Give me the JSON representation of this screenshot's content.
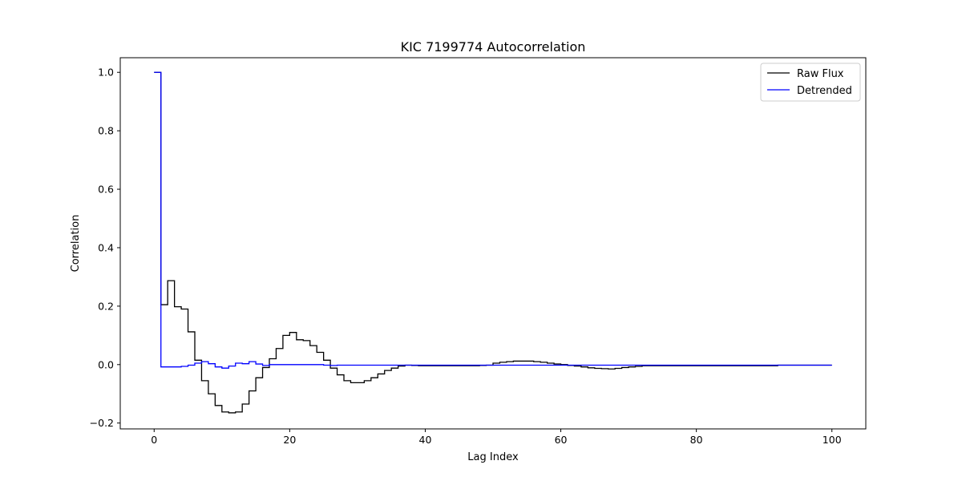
{
  "chart_data": {
    "type": "line",
    "title": "KIC 7199774 Autocorrelation",
    "xlabel": "Lag Index",
    "ylabel": "Correlation",
    "xlim": [
      -5,
      105
    ],
    "ylim": [
      -0.22,
      1.05
    ],
    "xticks": [
      0,
      20,
      40,
      60,
      80,
      100
    ],
    "yticks": [
      -0.2,
      0.0,
      0.2,
      0.4,
      0.6,
      0.8,
      1.0
    ],
    "xtick_labels": [
      "0",
      "20",
      "40",
      "60",
      "80",
      "100"
    ],
    "ytick_labels": [
      "−0.2",
      "0.0",
      "0.2",
      "0.4",
      "0.6",
      "0.8",
      "1.0"
    ],
    "grid": false,
    "legend": "upper-right",
    "drawstyle": "steps-post",
    "series": [
      {
        "name": "Raw Flux",
        "color": "#000000",
        "values": [
          1.0,
          0.205,
          0.287,
          0.198,
          0.19,
          0.112,
          0.015,
          -0.055,
          -0.1,
          -0.14,
          -0.162,
          -0.165,
          -0.162,
          -0.135,
          -0.09,
          -0.045,
          -0.01,
          0.02,
          0.055,
          0.1,
          0.11,
          0.085,
          0.082,
          0.065,
          0.042,
          0.015,
          -0.012,
          -0.035,
          -0.055,
          -0.062,
          -0.062,
          -0.055,
          -0.045,
          -0.032,
          -0.02,
          -0.012,
          -0.005,
          -0.002,
          -0.003,
          -0.004,
          -0.004,
          -0.004,
          -0.004,
          -0.004,
          -0.004,
          -0.004,
          -0.004,
          -0.004,
          -0.003,
          -0.002,
          0.005,
          0.008,
          0.01,
          0.012,
          0.012,
          0.012,
          0.01,
          0.008,
          0.005,
          0.002,
          0.0,
          -0.003,
          -0.005,
          -0.008,
          -0.011,
          -0.013,
          -0.014,
          -0.015,
          -0.013,
          -0.01,
          -0.008,
          -0.006,
          -0.004,
          -0.004,
          -0.004,
          -0.004,
          -0.004,
          -0.004,
          -0.004,
          -0.004,
          -0.004,
          -0.004,
          -0.004,
          -0.004,
          -0.004,
          -0.004,
          -0.004,
          -0.004,
          -0.004,
          -0.004,
          -0.004,
          -0.004,
          -0.002,
          -0.002,
          -0.002,
          -0.002,
          -0.002,
          -0.002,
          -0.002,
          -0.002,
          -0.002
        ]
      },
      {
        "name": "Detrended",
        "color": "#0000ff",
        "values": [
          1.0,
          -0.008,
          -0.008,
          -0.008,
          -0.006,
          -0.002,
          0.005,
          0.01,
          0.003,
          -0.008,
          -0.012,
          -0.005,
          0.005,
          0.003,
          0.01,
          0.002,
          -0.003,
          0.0,
          0.0,
          0.0,
          0.0,
          0.0,
          0.0,
          0.0,
          0.0,
          -0.002,
          -0.003,
          -0.002,
          -0.002,
          -0.002,
          -0.002,
          -0.002,
          -0.002,
          -0.002,
          -0.002,
          -0.002,
          -0.002,
          -0.002,
          -0.002,
          -0.002,
          -0.002,
          -0.002,
          -0.002,
          -0.002,
          -0.002,
          -0.002,
          -0.002,
          -0.002,
          -0.002,
          -0.002,
          -0.002,
          -0.002,
          -0.002,
          -0.002,
          -0.002,
          -0.002,
          -0.002,
          -0.002,
          -0.002,
          -0.002,
          -0.002,
          -0.002,
          -0.002,
          -0.002,
          -0.002,
          -0.002,
          -0.002,
          -0.002,
          -0.002,
          -0.002,
          -0.002,
          -0.002,
          -0.002,
          -0.002,
          -0.002,
          -0.002,
          -0.002,
          -0.002,
          -0.002,
          -0.002,
          -0.002,
          -0.002,
          -0.002,
          -0.002,
          -0.002,
          -0.002,
          -0.002,
          -0.002,
          -0.002,
          -0.002,
          -0.002,
          -0.002,
          -0.002,
          -0.002,
          -0.002,
          -0.002,
          -0.002,
          -0.002,
          -0.002,
          -0.002,
          -0.002
        ]
      }
    ]
  }
}
